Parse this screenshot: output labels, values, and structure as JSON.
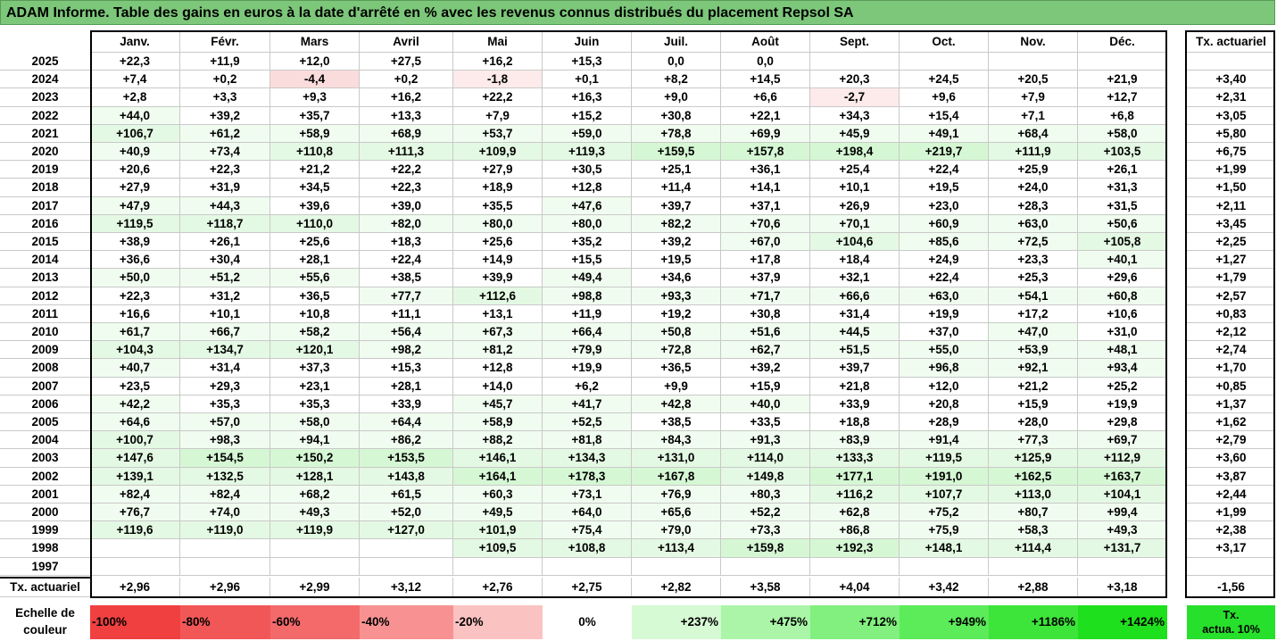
{
  "title": "ADAM Informe. Table des gains en euros à la date d'arrêté en % avec les revenus connus distribués du placement Repsol SA",
  "chart_data": {
    "type": "table",
    "columns": [
      "Janv.",
      "Févr.",
      "Mars",
      "Avril",
      "Mai",
      "Juin",
      "Juil.",
      "Août",
      "Sept.",
      "Oct.",
      "Nov.",
      "Déc."
    ],
    "side_header": "Tx. actuariel",
    "rows": [
      {
        "year": "2025",
        "values": [
          "+22,3",
          "+11,9",
          "+12,0",
          "+27,5",
          "+16,2",
          "+15,3",
          "0,0",
          "0,0",
          "",
          "",
          "",
          ""
        ],
        "tx": ""
      },
      {
        "year": "2024",
        "values": [
          "+7,4",
          "+0,2",
          "-4,4",
          "+0,2",
          "-1,8",
          "+0,1",
          "+8,2",
          "+14,5",
          "+20,3",
          "+24,5",
          "+20,5",
          "+21,9"
        ],
        "tx": "+3,40"
      },
      {
        "year": "2023",
        "values": [
          "+2,8",
          "+3,3",
          "+9,3",
          "+16,2",
          "+22,2",
          "+16,3",
          "+9,0",
          "+6,6",
          "-2,7",
          "+9,6",
          "+7,9",
          "+12,7"
        ],
        "tx": "+2,31"
      },
      {
        "year": "2022",
        "values": [
          "+44,0",
          "+39,2",
          "+35,7",
          "+13,3",
          "+7,9",
          "+15,2",
          "+30,8",
          "+22,1",
          "+34,3",
          "+15,4",
          "+7,1",
          "+6,8"
        ],
        "tx": "+3,05"
      },
      {
        "year": "2021",
        "values": [
          "+106,7",
          "+61,2",
          "+58,9",
          "+68,9",
          "+53,7",
          "+59,0",
          "+78,8",
          "+69,9",
          "+45,9",
          "+49,1",
          "+68,4",
          "+58,0"
        ],
        "tx": "+5,80"
      },
      {
        "year": "2020",
        "values": [
          "+40,9",
          "+73,4",
          "+110,8",
          "+111,3",
          "+109,9",
          "+119,3",
          "+159,5",
          "+157,8",
          "+198,4",
          "+219,7",
          "+111,9",
          "+103,5"
        ],
        "tx": "+6,75"
      },
      {
        "year": "2019",
        "values": [
          "+20,6",
          "+22,3",
          "+21,2",
          "+22,2",
          "+27,9",
          "+30,5",
          "+25,1",
          "+36,1",
          "+25,4",
          "+22,4",
          "+25,9",
          "+26,1"
        ],
        "tx": "+1,99"
      },
      {
        "year": "2018",
        "values": [
          "+27,9",
          "+31,9",
          "+34,5",
          "+22,3",
          "+18,9",
          "+12,8",
          "+11,4",
          "+14,1",
          "+10,1",
          "+19,5",
          "+24,0",
          "+31,3"
        ],
        "tx": "+1,50"
      },
      {
        "year": "2017",
        "values": [
          "+47,9",
          "+44,3",
          "+39,6",
          "+39,0",
          "+35,5",
          "+47,6",
          "+39,7",
          "+37,1",
          "+26,9",
          "+23,0",
          "+28,3",
          "+31,5"
        ],
        "tx": "+2,11"
      },
      {
        "year": "2016",
        "values": [
          "+119,5",
          "+118,7",
          "+110,0",
          "+82,0",
          "+80,0",
          "+80,0",
          "+82,2",
          "+70,6",
          "+70,1",
          "+60,9",
          "+63,0",
          "+50,6"
        ],
        "tx": "+3,45"
      },
      {
        "year": "2015",
        "values": [
          "+38,9",
          "+26,1",
          "+25,6",
          "+18,3",
          "+25,6",
          "+35,2",
          "+39,2",
          "+67,0",
          "+104,6",
          "+85,6",
          "+72,5",
          "+105,8"
        ],
        "tx": "+2,25"
      },
      {
        "year": "2014",
        "values": [
          "+36,6",
          "+30,4",
          "+28,1",
          "+22,4",
          "+14,9",
          "+15,5",
          "+19,5",
          "+17,8",
          "+18,4",
          "+24,9",
          "+23,3",
          "+40,1"
        ],
        "tx": "+1,27"
      },
      {
        "year": "2013",
        "values": [
          "+50,0",
          "+51,2",
          "+55,6",
          "+38,5",
          "+39,9",
          "+49,4",
          "+34,6",
          "+37,9",
          "+32,1",
          "+22,4",
          "+25,3",
          "+29,6"
        ],
        "tx": "+1,79"
      },
      {
        "year": "2012",
        "values": [
          "+22,3",
          "+31,2",
          "+36,5",
          "+77,7",
          "+112,6",
          "+98,8",
          "+93,3",
          "+71,7",
          "+66,6",
          "+63,0",
          "+54,1",
          "+60,8"
        ],
        "tx": "+2,57"
      },
      {
        "year": "2011",
        "values": [
          "+16,6",
          "+10,1",
          "+10,8",
          "+11,1",
          "+13,1",
          "+11,9",
          "+19,2",
          "+30,8",
          "+31,4",
          "+19,9",
          "+17,2",
          "+10,6"
        ],
        "tx": "+0,83"
      },
      {
        "year": "2010",
        "values": [
          "+61,7",
          "+66,7",
          "+58,2",
          "+56,4",
          "+67,3",
          "+66,4",
          "+50,8",
          "+51,6",
          "+44,5",
          "+37,0",
          "+47,0",
          "+31,0"
        ],
        "tx": "+2,12"
      },
      {
        "year": "2009",
        "values": [
          "+104,3",
          "+134,7",
          "+120,1",
          "+98,2",
          "+81,2",
          "+79,9",
          "+72,8",
          "+62,7",
          "+51,5",
          "+55,0",
          "+53,9",
          "+48,1"
        ],
        "tx": "+2,74"
      },
      {
        "year": "2008",
        "values": [
          "+40,7",
          "+31,4",
          "+37,3",
          "+15,3",
          "+12,8",
          "+19,9",
          "+36,5",
          "+39,2",
          "+39,7",
          "+96,8",
          "+92,1",
          "+93,4"
        ],
        "tx": "+1,70"
      },
      {
        "year": "2007",
        "values": [
          "+23,5",
          "+29,3",
          "+23,1",
          "+28,1",
          "+14,0",
          "+6,2",
          "+9,9",
          "+15,9",
          "+21,8",
          "+12,0",
          "+21,2",
          "+25,2"
        ],
        "tx": "+0,85"
      },
      {
        "year": "2006",
        "values": [
          "+42,2",
          "+35,3",
          "+35,3",
          "+33,9",
          "+45,7",
          "+41,7",
          "+42,8",
          "+40,0",
          "+33,9",
          "+20,8",
          "+15,9",
          "+19,9"
        ],
        "tx": "+1,37"
      },
      {
        "year": "2005",
        "values": [
          "+64,6",
          "+57,0",
          "+58,0",
          "+64,4",
          "+58,9",
          "+52,5",
          "+38,5",
          "+33,5",
          "+18,8",
          "+28,9",
          "+28,0",
          "+29,8"
        ],
        "tx": "+1,62"
      },
      {
        "year": "2004",
        "values": [
          "+100,7",
          "+98,3",
          "+94,1",
          "+86,2",
          "+88,2",
          "+81,8",
          "+84,3",
          "+91,3",
          "+83,9",
          "+91,4",
          "+77,3",
          "+69,7"
        ],
        "tx": "+2,79"
      },
      {
        "year": "2003",
        "values": [
          "+147,6",
          "+154,5",
          "+150,2",
          "+153,5",
          "+146,1",
          "+134,3",
          "+131,0",
          "+114,0",
          "+133,3",
          "+119,5",
          "+125,9",
          "+112,9"
        ],
        "tx": "+3,60"
      },
      {
        "year": "2002",
        "values": [
          "+139,1",
          "+132,5",
          "+128,1",
          "+143,8",
          "+164,1",
          "+178,3",
          "+167,8",
          "+149,8",
          "+177,1",
          "+191,0",
          "+162,5",
          "+163,7"
        ],
        "tx": "+3,87"
      },
      {
        "year": "2001",
        "values": [
          "+82,4",
          "+82,4",
          "+68,2",
          "+61,5",
          "+60,3",
          "+73,1",
          "+76,9",
          "+80,3",
          "+116,2",
          "+107,7",
          "+113,0",
          "+104,1"
        ],
        "tx": "+2,44"
      },
      {
        "year": "2000",
        "values": [
          "+76,7",
          "+74,0",
          "+49,3",
          "+52,0",
          "+49,5",
          "+64,0",
          "+65,6",
          "+52,2",
          "+62,8",
          "+75,2",
          "+80,7",
          "+99,4"
        ],
        "tx": "+1,99"
      },
      {
        "year": "1999",
        "values": [
          "+119,6",
          "+119,0",
          "+119,9",
          "+127,0",
          "+101,9",
          "+75,4",
          "+79,0",
          "+73,3",
          "+86,8",
          "+75,9",
          "+58,3",
          "+49,3"
        ],
        "tx": "+2,38"
      },
      {
        "year": "1998",
        "values": [
          "",
          "",
          "",
          "",
          "+109,5",
          "+108,8",
          "+113,4",
          "+159,8",
          "+192,3",
          "+148,1",
          "+114,4",
          "+131,7"
        ],
        "tx": "+3,17"
      },
      {
        "year": "1997",
        "values": [
          "",
          "",
          "",
          "",
          "",
          "",
          "",
          "",
          "",
          "",
          "",
          ""
        ],
        "tx": ""
      }
    ],
    "footer": {
      "label": "Tx. actuariel",
      "values": [
        "+2,96",
        "+2,96",
        "+2,99",
        "+3,12",
        "+2,76",
        "+2,75",
        "+2,82",
        "+3,58",
        "+4,04",
        "+3,42",
        "+2,88",
        "+3,18"
      ],
      "tx": "-1,56"
    },
    "legend": {
      "label_line1": "Echelle de",
      "label_line2": "couleur",
      "items": [
        {
          "text": "-100%",
          "color": "#f04040",
          "align": "left"
        },
        {
          "text": "-80%",
          "color": "#f25757",
          "align": "left"
        },
        {
          "text": "-60%",
          "color": "#f46a6a",
          "align": "left"
        },
        {
          "text": "-40%",
          "color": "#f89292",
          "align": "left"
        },
        {
          "text": "-20%",
          "color": "#fbc2c2",
          "align": "left"
        },
        {
          "text": "0%",
          "color": "#ffffff",
          "align": "center"
        },
        {
          "text": "+237%",
          "color": "#d6fad4",
          "align": "right"
        },
        {
          "text": "+475%",
          "color": "#aaf5a8",
          "align": "right"
        },
        {
          "text": "+712%",
          "color": "#82f07f",
          "align": "right"
        },
        {
          "text": "+949%",
          "color": "#5ceb59",
          "align": "right"
        },
        {
          "text": "+1186%",
          "color": "#3de53a",
          "align": "right"
        },
        {
          "text": "+1424%",
          "color": "#1fe01c",
          "align": "right"
        }
      ],
      "side_line1": "Tx.",
      "side_line2": "actua. 10%",
      "side_color": "#27e02b"
    }
  }
}
